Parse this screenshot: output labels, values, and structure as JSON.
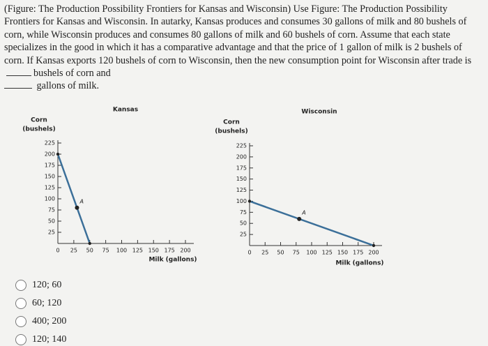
{
  "question": {
    "text_1": "(Figure: The Production Possibility Frontiers for Kansas and Wisconsin) Use Figure: The Production Possibility Frontiers for Kansas and Wisconsin. In autarky, Kansas produces and consumes 30 gallons of milk and 80 bushels of corn, while Wisconsin produces and consumes 80 gallons of milk and 60 bushels of corn. Assume that each state specializes in the good in which it has a comparative advantage and that the price of 1 gallon of milk is 2 bushels of corn. If Kansas exports 120 bushels of corn to Wisconsin, then the new consumption point for Wisconsin after trade is",
    "text_2": "bushels of corn and",
    "text_3": "gallons of milk."
  },
  "figures": [
    {
      "title": "Kansas",
      "y_label": [
        "Corn",
        "(bushels)"
      ],
      "x_label": "Milk (gallons)",
      "xlim": [
        0,
        200
      ],
      "ylim": [
        0,
        225
      ],
      "xticks": [
        0,
        25,
        50,
        75,
        100,
        125,
        150,
        175,
        200
      ],
      "yticks": [
        25,
        50,
        75,
        100,
        125,
        150,
        175,
        200,
        225
      ],
      "line": {
        "x": [
          0,
          50
        ],
        "y": [
          200,
          0
        ]
      },
      "point": {
        "label": "A",
        "x": 30,
        "y": 80
      }
    },
    {
      "title": "Wisconsin",
      "y_label": [
        "Corn",
        "(bushels)"
      ],
      "x_label": "Milk (gallons)",
      "xlim": [
        0,
        200
      ],
      "ylim": [
        0,
        225
      ],
      "xticks": [
        0,
        25,
        50,
        75,
        100,
        125,
        150,
        175,
        200
      ],
      "yticks": [
        25,
        50,
        75,
        100,
        125,
        150,
        175,
        200,
        225
      ],
      "line": {
        "x": [
          0,
          200
        ],
        "y": [
          100,
          0
        ]
      },
      "point": {
        "label": "A",
        "x": 80,
        "y": 60
      }
    }
  ],
  "options": [
    "120; 60",
    "60; 120",
    "400; 200",
    "120; 140"
  ]
}
